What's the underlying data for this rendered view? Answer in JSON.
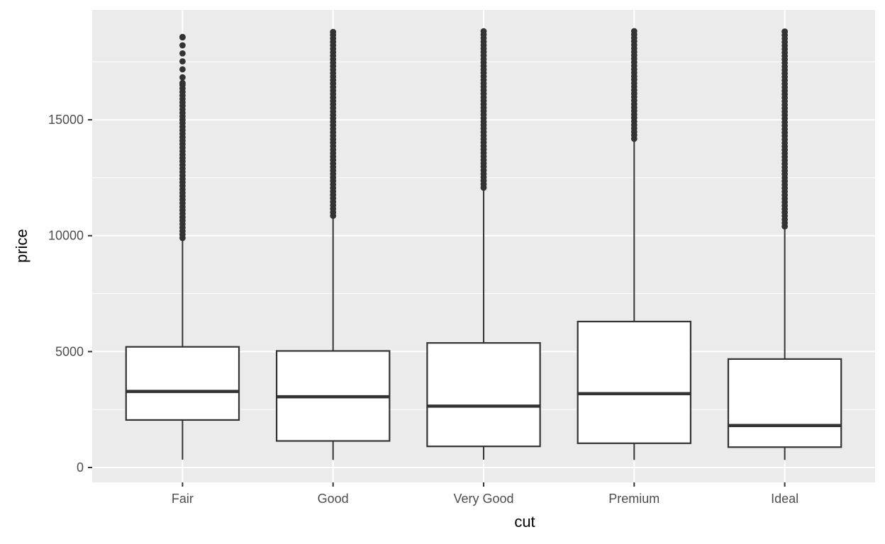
{
  "chart_data": {
    "type": "boxplot",
    "title": "",
    "xlabel": "cut",
    "ylabel": "price",
    "categories": [
      "Fair",
      "Good",
      "Very Good",
      "Premium",
      "Ideal"
    ],
    "y_axis": {
      "ticks": [
        0,
        5000,
        10000,
        15000
      ],
      "tick_labels": [
        "0",
        "5000",
        "10000",
        "15000"
      ],
      "minor_ticks": [
        2500,
        7500,
        12500,
        17500
      ],
      "range": [
        -830,
        19830
      ]
    },
    "grid": "white major and minor horizontal/vertical lines on gray panel",
    "legend": "none",
    "series": [
      {
        "category": "Fair",
        "lower_whisker": 337,
        "q1": 2050,
        "median": 3282,
        "q3": 5205,
        "upper_whisker": 9899,
        "max_outlier": 18574,
        "outlier_segments": [
          {
            "from": 9899,
            "to": 16590,
            "step": 150
          },
          {
            "from": 16830,
            "to": 18574,
            "step": 345
          }
        ]
      },
      {
        "category": "Good",
        "lower_whisker": 327,
        "q1": 1145,
        "median": 3050,
        "q3": 5028,
        "upper_whisker": 10845,
        "max_outlier": 18788,
        "outlier_segments": [
          {
            "from": 10860,
            "to": 18788,
            "step": 150
          }
        ]
      },
      {
        "category": "Very Good",
        "lower_whisker": 336,
        "q1": 912,
        "median": 2648,
        "q3": 5373,
        "upper_whisker": 12050,
        "max_outlier": 18818,
        "outlier_segments": [
          {
            "from": 12070,
            "to": 18818,
            "step": 150
          }
        ]
      },
      {
        "category": "Premium",
        "lower_whisker": 326,
        "q1": 1046,
        "median": 3185,
        "q3": 6296,
        "upper_whisker": 14160,
        "max_outlier": 18823,
        "outlier_segments": [
          {
            "from": 14180,
            "to": 18823,
            "step": 150
          }
        ]
      },
      {
        "category": "Ideal",
        "lower_whisker": 326,
        "q1": 878,
        "median": 1810,
        "q3": 4679,
        "upper_whisker": 10375,
        "max_outlier": 18806,
        "outlier_segments": [
          {
            "from": 10400,
            "to": 18806,
            "step": 150
          }
        ]
      }
    ],
    "style": {
      "panel_bg": "#EBEBEB",
      "grid_color": "#FFFFFF",
      "box_fill": "#FFFFFF",
      "stroke_color": "#333333",
      "tick_label_color": "#4D4D4D",
      "axis_title_color": "#000000"
    }
  }
}
